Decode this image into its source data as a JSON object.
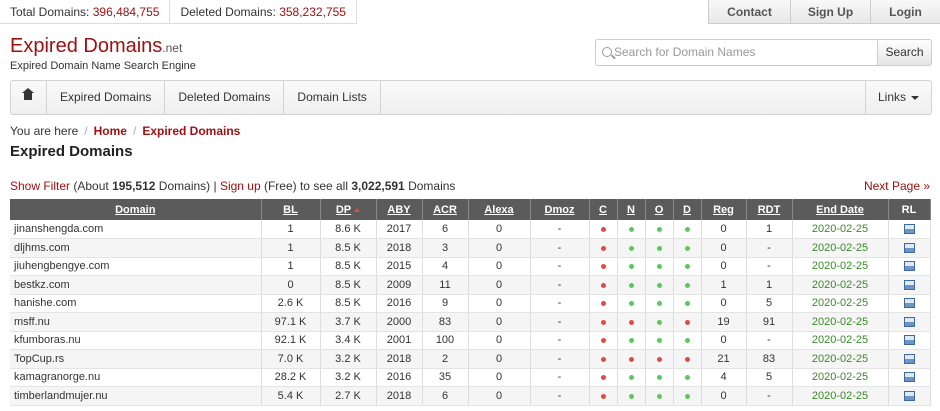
{
  "stats": {
    "total_label": "Total Domains:",
    "total_value": "396,484,755",
    "deleted_label": "Deleted Domains:",
    "deleted_value": "358,232,755"
  },
  "toplinks": {
    "contact": "Contact",
    "signup": "Sign Up",
    "login": "Login"
  },
  "logo": {
    "word1": "Expired",
    "word2": "Domains",
    "tld": ".net",
    "tagline": "Expired Domain Name Search Engine"
  },
  "search": {
    "placeholder": "Search for Domain Names",
    "button": "Search"
  },
  "nav": {
    "items": [
      "Expired Domains",
      "Deleted Domains",
      "Domain Lists"
    ],
    "links": "Links"
  },
  "breadcrumb": {
    "prefix": "You are here",
    "home": "Home",
    "current": "Expired Domains"
  },
  "page_title": "Expired Domains",
  "filter": {
    "show_filter": "Show Filter",
    "about_pre": "(About ",
    "count": "195,512",
    "about_post": " Domains) | ",
    "signup": "Sign up",
    "free_text": " (Free) to see all ",
    "total": "3,022,591",
    "domains_word": " Domains",
    "next_page": "Next Page »"
  },
  "table": {
    "headers": [
      "Domain",
      "BL",
      "DP",
      "ABY",
      "ACR",
      "Alexa",
      "Dmoz",
      "C",
      "N",
      "O",
      "D",
      "Reg",
      "RDT",
      "End Date",
      "RL"
    ],
    "rows": [
      {
        "domain": "jinanshengda.com",
        "bl": "1",
        "dp": "8.6 K",
        "aby": "2017",
        "acr": "6",
        "alexa": "0",
        "dmoz": "-",
        "c": "red",
        "n": "green",
        "o": "green",
        "d": "green",
        "reg": "0",
        "rdt": "1",
        "end": "2020-02-25"
      },
      {
        "domain": "dljhms.com",
        "bl": "1",
        "dp": "8.5 K",
        "aby": "2018",
        "acr": "3",
        "alexa": "0",
        "dmoz": "-",
        "c": "red",
        "n": "green",
        "o": "green",
        "d": "green",
        "reg": "0",
        "rdt": "-",
        "end": "2020-02-25"
      },
      {
        "domain": "jiuhengbengye.com",
        "bl": "1",
        "dp": "8.5 K",
        "aby": "2015",
        "acr": "4",
        "alexa": "0",
        "dmoz": "-",
        "c": "red",
        "n": "green",
        "o": "green",
        "d": "green",
        "reg": "0",
        "rdt": "-",
        "end": "2020-02-25"
      },
      {
        "domain": "bestkz.com",
        "bl": "0",
        "dp": "8.5 K",
        "aby": "2009",
        "acr": "11",
        "alexa": "0",
        "dmoz": "-",
        "c": "red",
        "n": "green",
        "o": "green",
        "d": "green",
        "reg": "1",
        "rdt": "1",
        "end": "2020-02-25"
      },
      {
        "domain": "hanishe.com",
        "bl": "2.6 K",
        "dp": "8.5 K",
        "aby": "2016",
        "acr": "9",
        "alexa": "0",
        "dmoz": "-",
        "c": "red",
        "n": "green",
        "o": "green",
        "d": "green",
        "reg": "0",
        "rdt": "5",
        "end": "2020-02-25"
      },
      {
        "domain": "msff.nu",
        "bl": "97.1 K",
        "dp": "3.7 K",
        "aby": "2000",
        "acr": "83",
        "alexa": "0",
        "dmoz": "-",
        "c": "red",
        "n": "red",
        "o": "green",
        "d": "red",
        "reg": "19",
        "rdt": "91",
        "end": "2020-02-25"
      },
      {
        "domain": "kfumboras.nu",
        "bl": "92.1 K",
        "dp": "3.4 K",
        "aby": "2001",
        "acr": "100",
        "alexa": "0",
        "dmoz": "-",
        "c": "red",
        "n": "green",
        "o": "green",
        "d": "green",
        "reg": "0",
        "rdt": "-",
        "end": "2020-02-25"
      },
      {
        "domain": "TopCup.rs",
        "bl": "7.0 K",
        "dp": "3.2 K",
        "aby": "2018",
        "acr": "2",
        "alexa": "0",
        "dmoz": "-",
        "c": "red",
        "n": "red",
        "o": "red",
        "d": "red",
        "reg": "21",
        "rdt": "83",
        "end": "2020-02-25"
      },
      {
        "domain": "kamagranorge.nu",
        "bl": "28.2 K",
        "dp": "3.2 K",
        "aby": "2016",
        "acr": "35",
        "alexa": "0",
        "dmoz": "-",
        "c": "red",
        "n": "green",
        "o": "green",
        "d": "green",
        "reg": "4",
        "rdt": "5",
        "end": "2020-02-25"
      },
      {
        "domain": "timberlandmujer.nu",
        "bl": "5.4 K",
        "dp": "2.7 K",
        "aby": "2018",
        "acr": "6",
        "alexa": "0",
        "dmoz": "-",
        "c": "red",
        "n": "green",
        "o": "green",
        "d": "green",
        "reg": "0",
        "rdt": "-",
        "end": "2020-02-25"
      }
    ]
  },
  "colors": {
    "accent": "#a01010",
    "header_bg": "#5b5b5b",
    "end_date": "#3a8a2a",
    "dot_red": "#e24a4a",
    "dot_green": "#5cc85c"
  },
  "icons": {
    "home": "home-icon",
    "search": "search-icon",
    "rl": "related-links-icon",
    "sort": "sort-asc-icon"
  }
}
